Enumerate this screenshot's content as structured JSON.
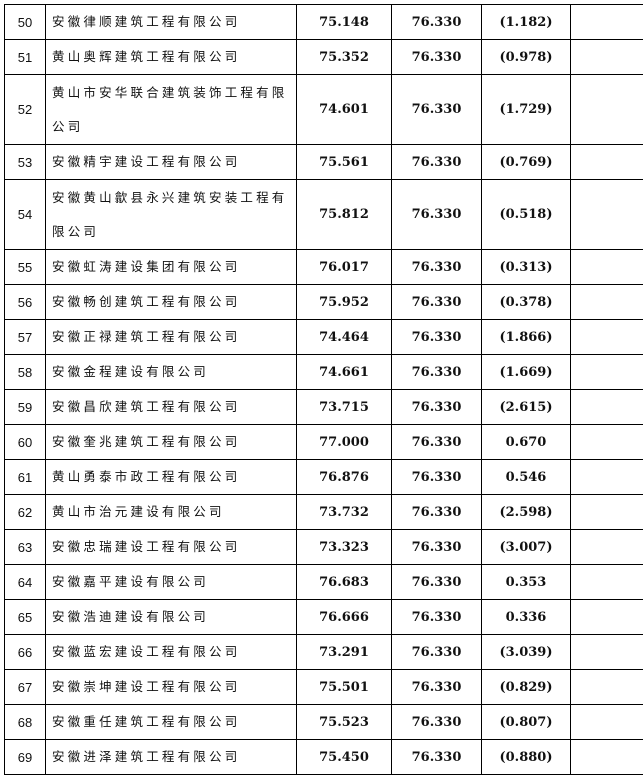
{
  "rows": [
    {
      "no": "50",
      "name": "安徽律顺建筑工程有限公司",
      "score": "75.148",
      "benchmark": "76.330",
      "diff": "(1.182)",
      "note": ""
    },
    {
      "no": "51",
      "name": "黄山奥辉建筑工程有限公司",
      "score": "75.352",
      "benchmark": "76.330",
      "diff": "(0.978)",
      "note": ""
    },
    {
      "no": "52",
      "name": "黄山市安华联合建筑装饰工程有限公司",
      "score": "74.601",
      "benchmark": "76.330",
      "diff": "(1.729)",
      "note": ""
    },
    {
      "no": "53",
      "name": "安徽精宇建设工程有限公司",
      "score": "75.561",
      "benchmark": "76.330",
      "diff": "(0.769)",
      "note": ""
    },
    {
      "no": "54",
      "name": "安徽黄山歙县永兴建筑安装工程有限公司",
      "score": "75.812",
      "benchmark": "76.330",
      "diff": "(0.518)",
      "note": ""
    },
    {
      "no": "55",
      "name": "安徽虹涛建设集团有限公司",
      "score": "76.017",
      "benchmark": "76.330",
      "diff": "(0.313)",
      "note": ""
    },
    {
      "no": "56",
      "name": "安徽畅创建筑工程有限公司",
      "score": "75.952",
      "benchmark": "76.330",
      "diff": "(0.378)",
      "note": ""
    },
    {
      "no": "57",
      "name": "安徽正禄建筑工程有限公司",
      "score": "74.464",
      "benchmark": "76.330",
      "diff": "(1.866)",
      "note": ""
    },
    {
      "no": "58",
      "name": "安徽金程建设有限公司",
      "score": "74.661",
      "benchmark": "76.330",
      "diff": "(1.669)",
      "note": ""
    },
    {
      "no": "59",
      "name": "安徽昌欣建筑工程有限公司",
      "score": "73.715",
      "benchmark": "76.330",
      "diff": "(2.615)",
      "note": ""
    },
    {
      "no": "60",
      "name": "安徽奎兆建筑工程有限公司",
      "score": "77.000",
      "benchmark": "76.330",
      "diff": "0.670",
      "note": ""
    },
    {
      "no": "61",
      "name": "黄山勇泰市政工程有限公司",
      "score": "76.876",
      "benchmark": "76.330",
      "diff": "0.546",
      "note": ""
    },
    {
      "no": "62",
      "name": "黄山市治元建设有限公司",
      "score": "73.732",
      "benchmark": "76.330",
      "diff": "(2.598)",
      "note": ""
    },
    {
      "no": "63",
      "name": "安徽忠瑞建设工程有限公司",
      "score": "73.323",
      "benchmark": "76.330",
      "diff": "(3.007)",
      "note": ""
    },
    {
      "no": "64",
      "name": "安徽嘉平建设有限公司",
      "score": "76.683",
      "benchmark": "76.330",
      "diff": "0.353",
      "note": ""
    },
    {
      "no": "65",
      "name": "安徽浩迪建设有限公司",
      "score": "76.666",
      "benchmark": "76.330",
      "diff": "0.336",
      "note": ""
    },
    {
      "no": "66",
      "name": "安徽蓝宏建设工程有限公司",
      "score": "73.291",
      "benchmark": "76.330",
      "diff": "(3.039)",
      "note": ""
    },
    {
      "no": "67",
      "name": "安徽崇坤建设工程有限公司",
      "score": "75.501",
      "benchmark": "76.330",
      "diff": "(0.829)",
      "note": ""
    },
    {
      "no": "68",
      "name": "安徽重任建筑工程有限公司",
      "score": "75.523",
      "benchmark": "76.330",
      "diff": "(0.807)",
      "note": ""
    },
    {
      "no": "69",
      "name": "安徽进泽建筑工程有限公司",
      "score": "75.450",
      "benchmark": "76.330",
      "diff": "(0.880)",
      "note": ""
    }
  ]
}
